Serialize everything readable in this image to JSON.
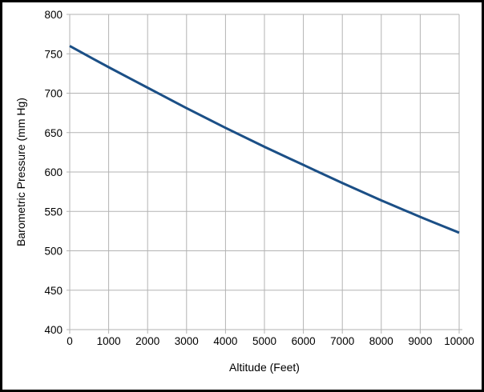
{
  "window": {
    "background": "#ffffff",
    "border_color": "#000000"
  },
  "chart_data": {
    "type": "line",
    "title": "",
    "xlabel": "Altitude (Feet)",
    "ylabel": "Barometric Pressure (mm Hg)",
    "x": [
      0,
      1000,
      2000,
      3000,
      4000,
      5000,
      6000,
      7000,
      8000,
      9000,
      10000
    ],
    "series": [
      {
        "name": "Barometric Pressure (mm Hg)",
        "color": "#1b4f86",
        "line_width": 3,
        "values": [
          760,
          733,
          707,
          681,
          656,
          632,
          609,
          586,
          564,
          543,
          523
        ]
      }
    ],
    "xlim": [
      0,
      10000
    ],
    "ylim": [
      400,
      800
    ],
    "x_ticks": [
      0,
      1000,
      2000,
      3000,
      4000,
      5000,
      6000,
      7000,
      8000,
      9000,
      10000
    ],
    "y_ticks": [
      400,
      450,
      500,
      550,
      600,
      650,
      700,
      750,
      800
    ],
    "grid": true,
    "legend": "none",
    "gridline_color": "#b3b3b3",
    "axis_color": "#b3b3b3",
    "tick_label_color": "#000000",
    "tick_label_font_size": 13.5
  }
}
